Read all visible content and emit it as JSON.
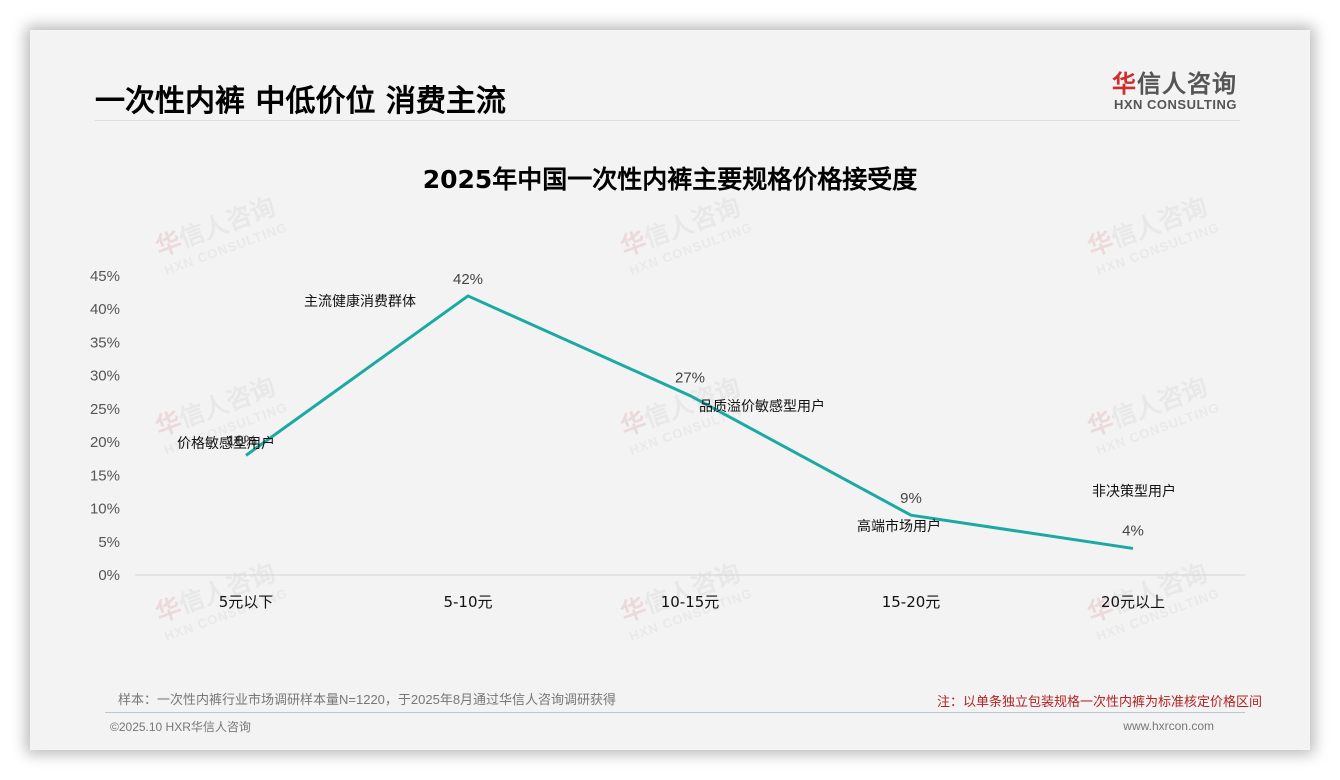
{
  "page": {
    "title": "一次性内裤 中低价位 消费主流",
    "logo": {
      "cn_red": "华",
      "cn_rest": "信人咨询",
      "en": "HXN CONSULTING"
    },
    "watermark": {
      "cn_red": "华",
      "cn_rest": "信人咨询",
      "en": "HXN CONSULTING"
    }
  },
  "footer": {
    "sample": "样本：一次性内裤行业市场调研样本量N=1220，于2025年8月通过华信人咨询调研获得",
    "note": "注：以单条独立包装规格一次性内裤为标准核定价格区间",
    "copyright": "©2025.10 HXR华信人咨询",
    "website": "www.hxrcon.com"
  },
  "colors": {
    "line": "#1aa9a3",
    "note": "#b22222",
    "logo_red": "#d12b2b"
  },
  "chart_data": {
    "type": "line",
    "title": "2025年中国一次性内裤主要规格价格接受度",
    "xlabel": "",
    "ylabel": "",
    "categories": [
      "5元以下",
      "5-10元",
      "10-15元",
      "15-20元",
      "20元以上"
    ],
    "series": [
      {
        "name": "价格接受度",
        "values": [
          18,
          42,
          27,
          9,
          4
        ]
      }
    ],
    "data_labels": [
      "18%",
      "42%",
      "27%",
      "9%",
      "4%"
    ],
    "annotations": [
      "价格敏感型用户",
      "主流健康消费群体",
      "品质溢价敏感型用户",
      "高端市场用户",
      "非决策型用户"
    ],
    "yticks": [
      "0%",
      "5%",
      "10%",
      "15%",
      "20%",
      "25%",
      "30%",
      "35%",
      "40%",
      "45%"
    ],
    "ylim": [
      0,
      45
    ],
    "grid": false,
    "legend": "none"
  }
}
